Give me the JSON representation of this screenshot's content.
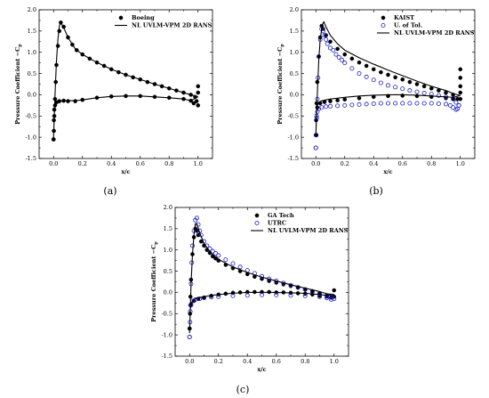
{
  "figure": {
    "panels": [
      {
        "label": "(a)"
      },
      {
        "label": "(b)"
      },
      {
        "label": "(c)"
      }
    ]
  },
  "chart_data": [
    {
      "type": "scatter",
      "panel": "(a)",
      "xlabel": "x/c",
      "ylabel": "Pressure Coefficient −C",
      "ylabel_sub": "p",
      "xlim": [
        -0.1,
        1.1
      ],
      "ylim": [
        -1.5,
        2.0
      ],
      "xticks": [
        "0.0",
        "0.2",
        "0.4",
        "0.6",
        "0.8",
        "1.0"
      ],
      "yticks": [
        "-1.5",
        "-1.0",
        "-0.5",
        "0.0",
        "0.5",
        "1.0",
        "1.5",
        "2.0"
      ],
      "legend_position": "top-right",
      "series": [
        {
          "name": "Boeing",
          "marker": "filled-circle",
          "color": "#000000",
          "x": [
            0.0,
            0.002,
            0.005,
            0.01,
            0.015,
            0.02,
            0.03,
            0.04,
            0.05,
            0.07,
            0.1,
            0.13,
            0.16,
            0.2,
            0.25,
            0.3,
            0.35,
            0.4,
            0.45,
            0.5,
            0.55,
            0.6,
            0.65,
            0.7,
            0.75,
            0.8,
            0.85,
            0.9,
            0.95,
            0.98,
            1.0,
            0.0,
            0.002,
            0.005,
            0.01,
            0.02,
            0.04,
            0.07,
            0.1,
            0.15,
            0.2,
            0.3,
            0.4,
            0.5,
            0.6,
            0.7,
            0.8,
            0.9,
            0.95,
            0.97,
            0.99,
            1.0,
            1.0
          ],
          "y": [
            -1.05,
            -0.85,
            -0.5,
            -0.1,
            0.3,
            0.7,
            1.15,
            1.5,
            1.7,
            1.6,
            1.35,
            1.18,
            1.05,
            0.95,
            0.85,
            0.76,
            0.68,
            0.6,
            0.53,
            0.47,
            0.41,
            0.36,
            0.3,
            0.25,
            0.2,
            0.15,
            0.1,
            0.05,
            0.0,
            -0.05,
            0.2,
            -1.05,
            -0.6,
            -0.35,
            -0.25,
            -0.18,
            -0.15,
            -0.14,
            -0.15,
            -0.15,
            -0.12,
            -0.07,
            -0.04,
            -0.03,
            -0.03,
            -0.05,
            -0.07,
            -0.1,
            -0.14,
            -0.2,
            -0.15,
            -0.25,
            0.05
          ]
        },
        {
          "name": "NL UVLM-VPM 2D RANS",
          "marker": "line",
          "color": "#000000",
          "x": [
            1.0,
            0.95,
            0.9,
            0.8,
            0.7,
            0.6,
            0.5,
            0.4,
            0.3,
            0.2,
            0.15,
            0.1,
            0.07,
            0.05,
            0.04,
            0.03,
            0.02,
            0.01,
            0.005,
            0.0,
            0.005,
            0.01,
            0.02,
            0.04,
            0.07,
            0.1,
            0.15,
            0.2,
            0.3,
            0.4,
            0.5,
            0.6,
            0.7,
            0.8,
            0.9,
            0.95,
            1.0
          ],
          "y": [
            -0.05,
            0.0,
            0.05,
            0.15,
            0.25,
            0.36,
            0.47,
            0.6,
            0.76,
            0.95,
            1.08,
            1.35,
            1.58,
            1.7,
            1.62,
            1.3,
            0.8,
            0.0,
            -0.5,
            -1.0,
            -0.45,
            -0.28,
            -0.2,
            -0.15,
            -0.14,
            -0.14,
            -0.14,
            -0.12,
            -0.07,
            -0.04,
            -0.03,
            -0.03,
            -0.05,
            -0.07,
            -0.1,
            -0.14,
            -0.05
          ]
        }
      ]
    },
    {
      "type": "scatter",
      "panel": "(b)",
      "xlabel": "x/c",
      "ylabel": "Pressure Coefficient −C",
      "ylabel_sub": "p",
      "xlim": [
        -0.1,
        1.1
      ],
      "ylim": [
        -1.5,
        2.0
      ],
      "xticks": [
        "0.0",
        "0.2",
        "0.4",
        "0.6",
        "0.8",
        "1.0"
      ],
      "yticks": [
        "-1.5",
        "-1.0",
        "-0.5",
        "0.0",
        "0.5",
        "1.0",
        "1.5",
        "2.0"
      ],
      "legend_position": "top-right",
      "series": [
        {
          "name": "KAIST",
          "marker": "filled-circle",
          "color": "#000000",
          "x": [
            0.0,
            0.002,
            0.005,
            0.01,
            0.02,
            0.03,
            0.04,
            0.05,
            0.07,
            0.1,
            0.15,
            0.2,
            0.25,
            0.3,
            0.35,
            0.4,
            0.45,
            0.5,
            0.55,
            0.6,
            0.65,
            0.7,
            0.75,
            0.8,
            0.85,
            0.9,
            0.95,
            1.0,
            1.0,
            1.0,
            1.0,
            1.0,
            0.0,
            0.01,
            0.03,
            0.06,
            0.1,
            0.15,
            0.2,
            0.3,
            0.4,
            0.5,
            0.6,
            0.7,
            0.8,
            0.9,
            0.95,
            0.98
          ],
          "y": [
            -0.95,
            -0.6,
            -0.2,
            0.3,
            0.9,
            1.35,
            1.62,
            1.55,
            1.4,
            1.25,
            1.08,
            0.95,
            0.85,
            0.76,
            0.68,
            0.6,
            0.53,
            0.47,
            0.41,
            0.36,
            0.3,
            0.25,
            0.2,
            0.15,
            0.1,
            0.05,
            0.0,
            0.6,
            0.4,
            0.2,
            0.05,
            -0.1,
            -0.95,
            -0.3,
            -0.2,
            -0.17,
            -0.15,
            -0.13,
            -0.11,
            -0.08,
            -0.05,
            -0.03,
            -0.02,
            -0.03,
            -0.05,
            -0.08,
            -0.1,
            -0.1
          ]
        },
        {
          "name": "U. of Tol.",
          "marker": "open-circle",
          "color": "#1f1fcc",
          "x": [
            0.0,
            0.003,
            0.006,
            0.01,
            0.015,
            0.02,
            0.03,
            0.04,
            0.05,
            0.06,
            0.07,
            0.08,
            0.1,
            0.12,
            0.14,
            0.16,
            0.18,
            0.2,
            0.25,
            0.3,
            0.35,
            0.4,
            0.45,
            0.5,
            0.55,
            0.6,
            0.65,
            0.7,
            0.75,
            0.8,
            0.85,
            0.9,
            0.95,
            0.97,
            0.99,
            0.0,
            0.005,
            0.01,
            0.02,
            0.04,
            0.07,
            0.1,
            0.15,
            0.2,
            0.25,
            0.3,
            0.35,
            0.4,
            0.45,
            0.5,
            0.55,
            0.6,
            0.65,
            0.7,
            0.75,
            0.8,
            0.85,
            0.9,
            0.93,
            0.95,
            0.97,
            0.98,
            0.99
          ],
          "y": [
            -1.25,
            -0.95,
            -0.55,
            -0.1,
            0.4,
            0.9,
            1.3,
            1.55,
            1.5,
            1.4,
            1.3,
            1.2,
            1.1,
            1.05,
            0.95,
            0.88,
            0.82,
            0.75,
            0.62,
            0.5,
            0.42,
            0.35,
            0.28,
            0.22,
            0.18,
            0.14,
            0.1,
            0.07,
            0.04,
            0.02,
            -0.02,
            -0.05,
            -0.1,
            -0.18,
            -0.25,
            -1.25,
            -0.5,
            -0.4,
            -0.33,
            -0.3,
            -0.28,
            -0.27,
            -0.26,
            -0.25,
            -0.24,
            -0.23,
            -0.22,
            -0.21,
            -0.2,
            -0.2,
            -0.2,
            -0.2,
            -0.2,
            -0.2,
            -0.2,
            -0.2,
            -0.21,
            -0.22,
            -0.25,
            -0.3,
            -0.35,
            -0.33,
            -0.25
          ]
        },
        {
          "name": "NL UVLM-VPM 2D RANS",
          "marker": "line",
          "color": "#000000",
          "x": [
            1.0,
            0.95,
            0.9,
            0.8,
            0.7,
            0.6,
            0.5,
            0.4,
            0.3,
            0.2,
            0.15,
            0.1,
            0.07,
            0.055,
            0.045,
            0.03,
            0.02,
            0.01,
            0.005,
            0.0,
            0.005,
            0.01,
            0.02,
            0.04,
            0.07,
            0.1,
            0.15,
            0.2,
            0.3,
            0.4,
            0.5,
            0.6,
            0.7,
            0.8,
            0.9,
            0.95,
            1.0
          ],
          "y": [
            -0.02,
            0.03,
            0.1,
            0.2,
            0.32,
            0.45,
            0.58,
            0.72,
            0.87,
            1.05,
            1.2,
            1.4,
            1.6,
            1.72,
            1.65,
            1.3,
            0.8,
            0.0,
            -0.5,
            -0.95,
            -0.4,
            -0.25,
            -0.18,
            -0.14,
            -0.12,
            -0.1,
            -0.08,
            -0.06,
            -0.03,
            -0.01,
            0.0,
            0.0,
            -0.01,
            -0.03,
            -0.05,
            -0.06,
            -0.02
          ]
        }
      ]
    },
    {
      "type": "scatter",
      "panel": "(c)",
      "xlabel": "x/c",
      "ylabel": "Pressure Coefficient −C",
      "ylabel_sub": "p",
      "xlim": [
        -0.1,
        1.1
      ],
      "ylim": [
        -1.5,
        2.0
      ],
      "xticks": [
        "0.0",
        "0.2",
        "0.4",
        "0.6",
        "0.8",
        "1.0"
      ],
      "yticks": [
        "-1.5",
        "-1.0",
        "-0.5",
        "0.0",
        "0.5",
        "1.0",
        "1.5",
        "2.0"
      ],
      "legend_position": "top-right",
      "series": [
        {
          "name": "GA Tech",
          "marker": "filled-circle",
          "color": "#000000",
          "x": [
            0.0,
            0.003,
            0.006,
            0.01,
            0.02,
            0.03,
            0.04,
            0.05,
            0.06,
            0.08,
            0.1,
            0.12,
            0.14,
            0.16,
            0.18,
            0.2,
            0.25,
            0.3,
            0.35,
            0.4,
            0.45,
            0.5,
            0.55,
            0.6,
            0.65,
            0.7,
            0.75,
            0.8,
            0.85,
            0.9,
            0.95,
            1.0,
            1.0,
            0.0,
            0.01,
            0.03,
            0.06,
            0.1,
            0.15,
            0.2,
            0.25,
            0.3,
            0.35,
            0.4,
            0.45,
            0.5,
            0.55,
            0.6,
            0.65,
            0.7,
            0.75,
            0.8,
            0.85,
            0.9,
            0.95,
            0.98
          ],
          "y": [
            -0.85,
            -0.5,
            -0.1,
            0.3,
            0.9,
            1.3,
            1.5,
            1.45,
            1.35,
            1.2,
            1.1,
            1.0,
            0.93,
            0.85,
            0.8,
            0.75,
            0.65,
            0.57,
            0.5,
            0.43,
            0.37,
            0.32,
            0.27,
            0.23,
            0.19,
            0.15,
            0.11,
            0.07,
            0.03,
            -0.02,
            -0.07,
            0.05,
            -0.1,
            -0.85,
            -0.28,
            -0.2,
            -0.15,
            -0.12,
            -0.08,
            -0.05,
            -0.03,
            -0.01,
            0.0,
            0.01,
            0.01,
            0.01,
            0.01,
            0.0,
            0.0,
            -0.01,
            -0.02,
            -0.03,
            -0.05,
            -0.08,
            -0.1,
            -0.12
          ]
        },
        {
          "name": "UTRC",
          "marker": "open-circle",
          "color": "#1f1fcc",
          "x": [
            0.0,
            0.003,
            0.006,
            0.01,
            0.015,
            0.02,
            0.03,
            0.04,
            0.05,
            0.06,
            0.07,
            0.08,
            0.1,
            0.12,
            0.14,
            0.16,
            0.18,
            0.2,
            0.25,
            0.3,
            0.35,
            0.4,
            0.45,
            0.5,
            0.55,
            0.6,
            0.65,
            0.7,
            0.75,
            0.8,
            0.85,
            0.9,
            0.95,
            0.98,
            1.0,
            0.0,
            0.005,
            0.01,
            0.02,
            0.04,
            0.07,
            0.1,
            0.15,
            0.2,
            0.3,
            0.4,
            0.5,
            0.6,
            0.7,
            0.8,
            0.9,
            0.95,
            0.98
          ],
          "y": [
            -1.05,
            -0.7,
            -0.3,
            0.2,
            0.7,
            1.1,
            1.45,
            1.7,
            1.75,
            1.6,
            1.45,
            1.35,
            1.2,
            1.1,
            1.03,
            0.97,
            0.92,
            0.87,
            0.77,
            0.68,
            0.6,
            0.52,
            0.45,
            0.38,
            0.32,
            0.27,
            0.22,
            0.17,
            0.12,
            0.07,
            0.02,
            -0.03,
            -0.08,
            -0.12,
            -0.15,
            -1.05,
            -0.45,
            -0.3,
            -0.2,
            -0.17,
            -0.15,
            -0.13,
            -0.11,
            -0.1,
            -0.08,
            -0.07,
            -0.06,
            -0.06,
            -0.07,
            -0.08,
            -0.1,
            -0.13,
            -0.17
          ]
        },
        {
          "name": "NL UVLM-VPM 2D RANS",
          "marker": "line",
          "color": "#000000",
          "x": [
            1.0,
            0.95,
            0.9,
            0.8,
            0.7,
            0.6,
            0.5,
            0.4,
            0.3,
            0.2,
            0.15,
            0.1,
            0.07,
            0.05,
            0.04,
            0.03,
            0.02,
            0.01,
            0.005,
            0.0,
            0.005,
            0.01,
            0.02,
            0.04,
            0.07,
            0.1,
            0.15,
            0.2,
            0.3,
            0.4,
            0.5,
            0.6,
            0.7,
            0.8,
            0.9,
            0.95,
            1.0
          ],
          "y": [
            -0.05,
            -0.03,
            0.02,
            0.1,
            0.18,
            0.27,
            0.36,
            0.47,
            0.6,
            0.78,
            0.92,
            1.15,
            1.4,
            1.62,
            1.62,
            1.35,
            0.9,
            0.2,
            -0.4,
            -0.95,
            -0.4,
            -0.28,
            -0.2,
            -0.15,
            -0.12,
            -0.1,
            -0.07,
            -0.05,
            -0.02,
            0.0,
            0.0,
            0.0,
            -0.01,
            -0.02,
            -0.05,
            -0.07,
            -0.05
          ]
        }
      ]
    }
  ]
}
